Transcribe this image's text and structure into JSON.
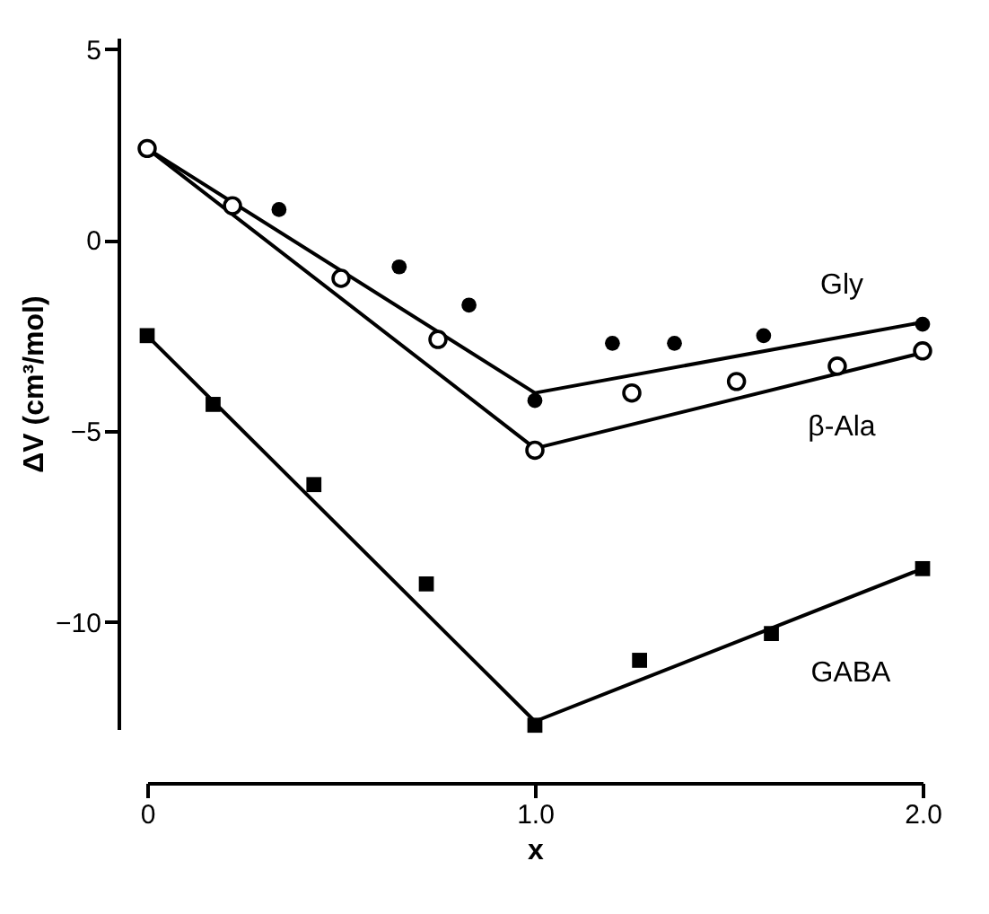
{
  "chart_data": {
    "type": "scatter",
    "xlabel": "x",
    "ylabel": "ΔV (cm³/mol)",
    "xlim": [
      0,
      2
    ],
    "ylim": [
      -12.8,
      5.3
    ],
    "xticks": [
      0,
      {
        "value": 1,
        "label": "1.0"
      },
      {
        "value": 2,
        "label": "2.0"
      }
    ],
    "yticks": [
      -10,
      -5,
      0,
      5
    ],
    "grid": false,
    "legend": false,
    "series": [
      {
        "name": "Gly",
        "type": "scatter",
        "marker": "circle",
        "color": "#000000",
        "x": [
          0.34,
          0.65,
          0.83,
          1.0,
          1.2,
          1.36,
          1.59,
          2.0
        ],
        "values": [
          0.8,
          -0.7,
          -1.7,
          -4.2,
          -2.7,
          -2.7,
          -2.5,
          -2.2
        ]
      },
      {
        "name": "β-Ala",
        "type": "scatter",
        "marker": "open circle",
        "color": "#000000",
        "x": [
          0,
          0.22,
          0.5,
          0.75,
          1.0,
          1.25,
          1.52,
          1.78,
          2.0
        ],
        "values": [
          2.4,
          0.9,
          -1.0,
          -2.6,
          -5.5,
          -4.0,
          -3.7,
          -3.3,
          -2.9
        ]
      },
      {
        "name": "GABA",
        "type": "scatter",
        "marker": "square",
        "color": "#000000",
        "x": [
          0,
          0.17,
          0.43,
          0.72,
          1.0,
          1.27,
          1.61,
          2.0
        ],
        "values": [
          -2.5,
          -4.3,
          -6.4,
          -9.0,
          -12.7,
          -11.0,
          -10.3,
          -8.6
        ]
      },
      {
        "type": "line",
        "line_style": "solid",
        "color": "#000000",
        "x": [
          0,
          1,
          2
        ],
        "values": [
          2.4,
          -4.0,
          -2.15
        ]
      },
      {
        "type": "line",
        "line_style": "solid",
        "color": "#000000",
        "x": [
          0,
          1,
          2
        ],
        "values": [
          2.4,
          -5.45,
          -2.95
        ]
      },
      {
        "type": "line",
        "line_style": "solid",
        "color": "#000000",
        "x": [
          0,
          1,
          2
        ],
        "values": [
          -2.5,
          -12.6,
          -8.6
        ]
      }
    ]
  }
}
